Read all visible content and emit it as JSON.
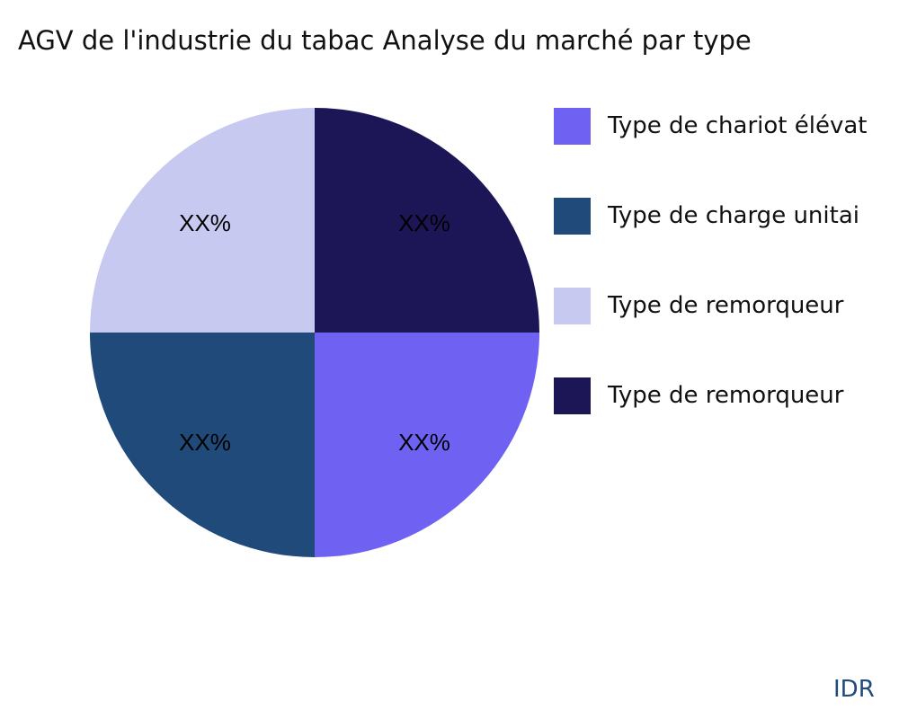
{
  "chart_data": {
    "type": "pie",
    "title": "AGV de l'industrie du tabac Analyse du marché par type",
    "slices": [
      {
        "name": "Type de chariot élévat",
        "value": 25,
        "label": "XX%",
        "color": "#6f61f2"
      },
      {
        "name": "Type de charge unitai",
        "value": 25,
        "label": "XX%",
        "color": "#1f4a7a"
      },
      {
        "name": "Type de remorqueur",
        "value": 25,
        "label": "XX%",
        "color": "#c8c9f0"
      },
      {
        "name": "Type de remorqueur",
        "value": 25,
        "label": "XX%",
        "color": "#1c1656"
      }
    ],
    "start_angle": "3 o'clock",
    "direction": "clockwise",
    "legend_position": "right"
  },
  "watermark": "IDR"
}
